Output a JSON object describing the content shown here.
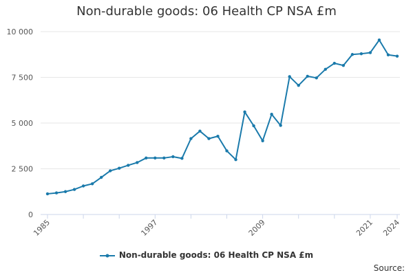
{
  "chart_data": {
    "type": "line",
    "title": "Non-durable goods: 06 Health CP NSA £m",
    "xlabel": "",
    "ylabel": "",
    "x_range": [
      1985,
      2024
    ],
    "ylim": [
      0,
      10000
    ],
    "y_ticks": [
      0,
      2500,
      5000,
      7500,
      10000
    ],
    "y_tick_labels": [
      "0",
      "2 500",
      "5 000",
      "7 500",
      "10 000"
    ],
    "x_ticks": [
      1985,
      1997,
      2009,
      2021,
      2024
    ],
    "x_tick_labels": [
      "1985",
      "1997",
      "2009",
      "2021",
      "2024"
    ],
    "grid": true,
    "legend_position": "bottom",
    "color": "#1a7aab",
    "series": [
      {
        "name": "Non-durable goods: 06 Health CP NSA £m",
        "x": [
          1985,
          1986,
          1987,
          1988,
          1989,
          1990,
          1991,
          1992,
          1993,
          1994,
          1995,
          1996,
          1997,
          1998,
          1999,
          2000,
          2001,
          2002,
          2003,
          2004,
          2005,
          2006,
          2007,
          2008,
          2009,
          2010,
          2011,
          2012,
          2013,
          2014,
          2015,
          2016,
          2017,
          2018,
          2019,
          2020,
          2021,
          2022,
          2023,
          2024
        ],
        "y": [
          1130,
          1180,
          1250,
          1370,
          1560,
          1680,
          2030,
          2390,
          2530,
          2690,
          2840,
          3090,
          3090,
          3090,
          3160,
          3070,
          4150,
          4560,
          4150,
          4280,
          3480,
          3000,
          5610,
          4850,
          4030,
          5480,
          4870,
          7540,
          7060,
          7560,
          7470,
          7940,
          8270,
          8150,
          8750,
          8790,
          8850,
          9540,
          8730,
          8660
        ]
      }
    ]
  },
  "footer": {
    "source_label": "Source:"
  }
}
